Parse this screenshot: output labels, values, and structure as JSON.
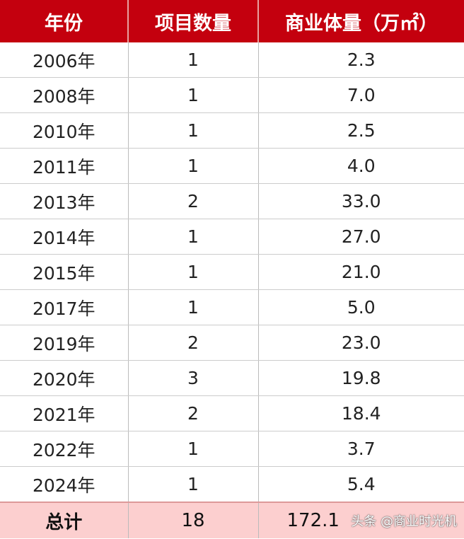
{
  "colors": {
    "header_bg": "#c4000e",
    "total_bg": "#fccfcf"
  },
  "table": {
    "headers": [
      "年份",
      "项目数量",
      "商业体量（万㎡）"
    ],
    "rows": [
      [
        "2006年",
        "1",
        "2.3"
      ],
      [
        "2008年",
        "1",
        "7.0"
      ],
      [
        "2010年",
        "1",
        "2.5"
      ],
      [
        "2011年",
        "1",
        "4.0"
      ],
      [
        "2013年",
        "2",
        "33.0"
      ],
      [
        "2014年",
        "1",
        "27.0"
      ],
      [
        "2015年",
        "1",
        "21.0"
      ],
      [
        "2017年",
        "1",
        "5.0"
      ],
      [
        "2019年",
        "2",
        "23.0"
      ],
      [
        "2020年",
        "3",
        "19.8"
      ],
      [
        "2021年",
        "2",
        "18.4"
      ],
      [
        "2022年",
        "1",
        "3.7"
      ],
      [
        "2024年",
        "1",
        "5.4"
      ]
    ],
    "total": [
      "总计",
      "18",
      "172.1"
    ]
  },
  "watermark": "头条 @商业时光机"
}
